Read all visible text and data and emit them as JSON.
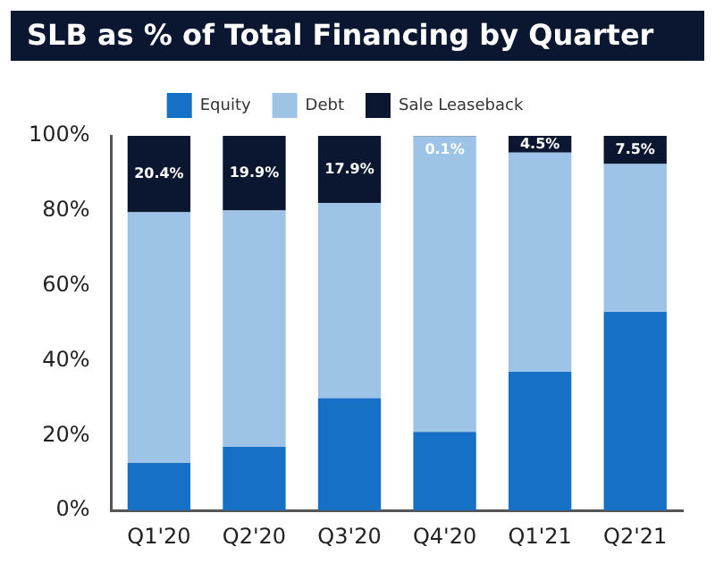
{
  "chart_data": {
    "type": "bar",
    "title": "SLB as % of Total Financing by Quarter",
    "stacked": true,
    "legend": "top",
    "grid": false,
    "categories": [
      "Q1'20",
      "Q2'20",
      "Q3'20",
      "Q4'20",
      "Q1'21",
      "Q2'21"
    ],
    "series": [
      {
        "name": "Equity",
        "color": "#1570c6",
        "values": [
          12.7,
          17,
          30,
          21,
          37,
          53
        ]
      },
      {
        "name": "Debt",
        "color": "#9dc3e6",
        "values": [
          66.9,
          63.1,
          52.1,
          78.9,
          58.5,
          39.5
        ]
      },
      {
        "name": "Sale Leaseback",
        "color": "#0b1730",
        "values": [
          20.4,
          19.9,
          17.9,
          0.1,
          4.5,
          7.5
        ],
        "value_labels": [
          "20.4%",
          "19.9%",
          "17.9%",
          "0.1%",
          "4.5%",
          "7.5%"
        ]
      }
    ],
    "ylim": [
      0,
      100
    ],
    "yticks": [
      {
        "value": 0,
        "label": "0%"
      },
      {
        "value": 20,
        "label": "20%"
      },
      {
        "value": 40,
        "label": "40%"
      },
      {
        "value": 60,
        "label": "60%"
      },
      {
        "value": 80,
        "label": "80%"
      },
      {
        "value": 100,
        "label": "100%"
      }
    ]
  }
}
